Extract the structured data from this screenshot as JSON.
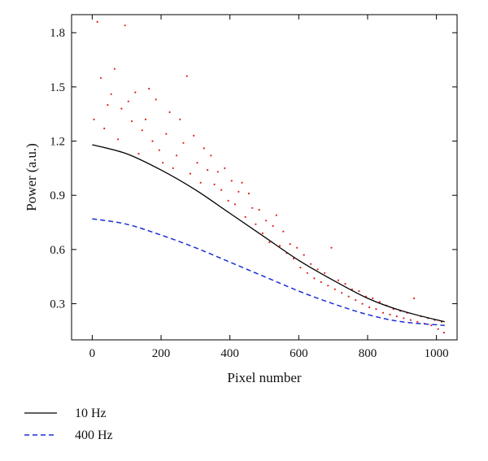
{
  "chart_data": {
    "type": "line",
    "title": "",
    "xlabel": "Pixel number",
    "ylabel": "Power (a.u.)",
    "xlim": [
      -60,
      1060
    ],
    "ylim": [
      0.1,
      1.9
    ],
    "xticks": [
      0,
      200,
      400,
      600,
      800,
      1000
    ],
    "yticks": [
      0.3,
      0.6,
      0.9,
      1.2,
      1.5,
      1.8
    ],
    "xtick_labels": [
      "0",
      "200",
      "400",
      "600",
      "800",
      "1000"
    ],
    "ytick_labels": [
      "0.3",
      "0.6",
      "0.9",
      "1.2",
      "1.5",
      "1.8"
    ],
    "grid": false,
    "legend_position": "below",
    "series": [
      {
        "name": "10 Hz",
        "style": "solid",
        "color": "#000000",
        "x": [
          0,
          100,
          200,
          300,
          400,
          500,
          600,
          700,
          800,
          900,
          1024
        ],
        "y": [
          1.18,
          1.13,
          1.04,
          0.93,
          0.8,
          0.67,
          0.54,
          0.43,
          0.33,
          0.26,
          0.2
        ]
      },
      {
        "name": "400 Hz",
        "style": "dashed",
        "color": "#1a2fd6",
        "x": [
          0,
          100,
          200,
          300,
          400,
          500,
          600,
          700,
          800,
          900,
          1024
        ],
        "y": [
          0.77,
          0.74,
          0.68,
          0.61,
          0.53,
          0.45,
          0.37,
          0.3,
          0.24,
          0.2,
          0.18
        ]
      }
    ],
    "scatter_series": {
      "color": "#dd2020",
      "points": [
        [
          5,
          1.32
        ],
        [
          15,
          1.86
        ],
        [
          25,
          1.55
        ],
        [
          35,
          1.27
        ],
        [
          45,
          1.4
        ],
        [
          55,
          1.46
        ],
        [
          65,
          1.6
        ],
        [
          75,
          1.21
        ],
        [
          85,
          1.38
        ],
        [
          95,
          1.84
        ],
        [
          105,
          1.42
        ],
        [
          115,
          1.31
        ],
        [
          125,
          1.47
        ],
        [
          135,
          1.13
        ],
        [
          145,
          1.26
        ],
        [
          155,
          1.32
        ],
        [
          165,
          1.49
        ],
        [
          175,
          1.2
        ],
        [
          185,
          1.43
        ],
        [
          195,
          1.15
        ],
        [
          205,
          1.08
        ],
        [
          215,
          1.24
        ],
        [
          225,
          1.36
        ],
        [
          235,
          1.05
        ],
        [
          245,
          1.12
        ],
        [
          255,
          1.32
        ],
        [
          265,
          1.19
        ],
        [
          275,
          1.56
        ],
        [
          285,
          1.02
        ],
        [
          295,
          1.23
        ],
        [
          305,
          1.08
        ],
        [
          315,
          0.97
        ],
        [
          325,
          1.16
        ],
        [
          335,
          1.04
        ],
        [
          345,
          1.12
        ],
        [
          355,
          0.96
        ],
        [
          365,
          1.03
        ],
        [
          375,
          0.93
        ],
        [
          385,
          1.05
        ],
        [
          395,
          0.87
        ],
        [
          405,
          0.98
        ],
        [
          415,
          0.85
        ],
        [
          425,
          0.92
        ],
        [
          435,
          0.97
        ],
        [
          445,
          0.78
        ],
        [
          455,
          0.91
        ],
        [
          465,
          0.83
        ],
        [
          475,
          0.74
        ],
        [
          485,
          0.82
        ],
        [
          495,
          0.69
        ],
        [
          505,
          0.76
        ],
        [
          515,
          0.64
        ],
        [
          525,
          0.73
        ],
        [
          535,
          0.79
        ],
        [
          545,
          0.62
        ],
        [
          555,
          0.7
        ],
        [
          565,
          0.58
        ],
        [
          575,
          0.63
        ],
        [
          585,
          0.55
        ],
        [
          595,
          0.61
        ],
        [
          605,
          0.5
        ],
        [
          615,
          0.57
        ],
        [
          625,
          0.47
        ],
        [
          635,
          0.52
        ],
        [
          645,
          0.44
        ],
        [
          655,
          0.49
        ],
        [
          665,
          0.42
        ],
        [
          675,
          0.47
        ],
        [
          685,
          0.4
        ],
        [
          695,
          0.61
        ],
        [
          705,
          0.38
        ],
        [
          715,
          0.43
        ],
        [
          725,
          0.36
        ],
        [
          735,
          0.41
        ],
        [
          745,
          0.34
        ],
        [
          755,
          0.38
        ],
        [
          765,
          0.32
        ],
        [
          775,
          0.37
        ],
        [
          785,
          0.3
        ],
        [
          795,
          0.34
        ],
        [
          805,
          0.28
        ],
        [
          815,
          0.33
        ],
        [
          825,
          0.27
        ],
        [
          835,
          0.31
        ],
        [
          845,
          0.25
        ],
        [
          855,
          0.29
        ],
        [
          865,
          0.24
        ],
        [
          875,
          0.27
        ],
        [
          885,
          0.23
        ],
        [
          895,
          0.26
        ],
        [
          905,
          0.22
        ],
        [
          915,
          0.25
        ],
        [
          925,
          0.21
        ],
        [
          935,
          0.33
        ],
        [
          945,
          0.2
        ],
        [
          955,
          0.23
        ],
        [
          965,
          0.19
        ],
        [
          975,
          0.22
        ],
        [
          985,
          0.18
        ],
        [
          995,
          0.21
        ],
        [
          1005,
          0.16
        ],
        [
          1015,
          0.2
        ],
        [
          1022,
          0.14
        ]
      ]
    }
  }
}
